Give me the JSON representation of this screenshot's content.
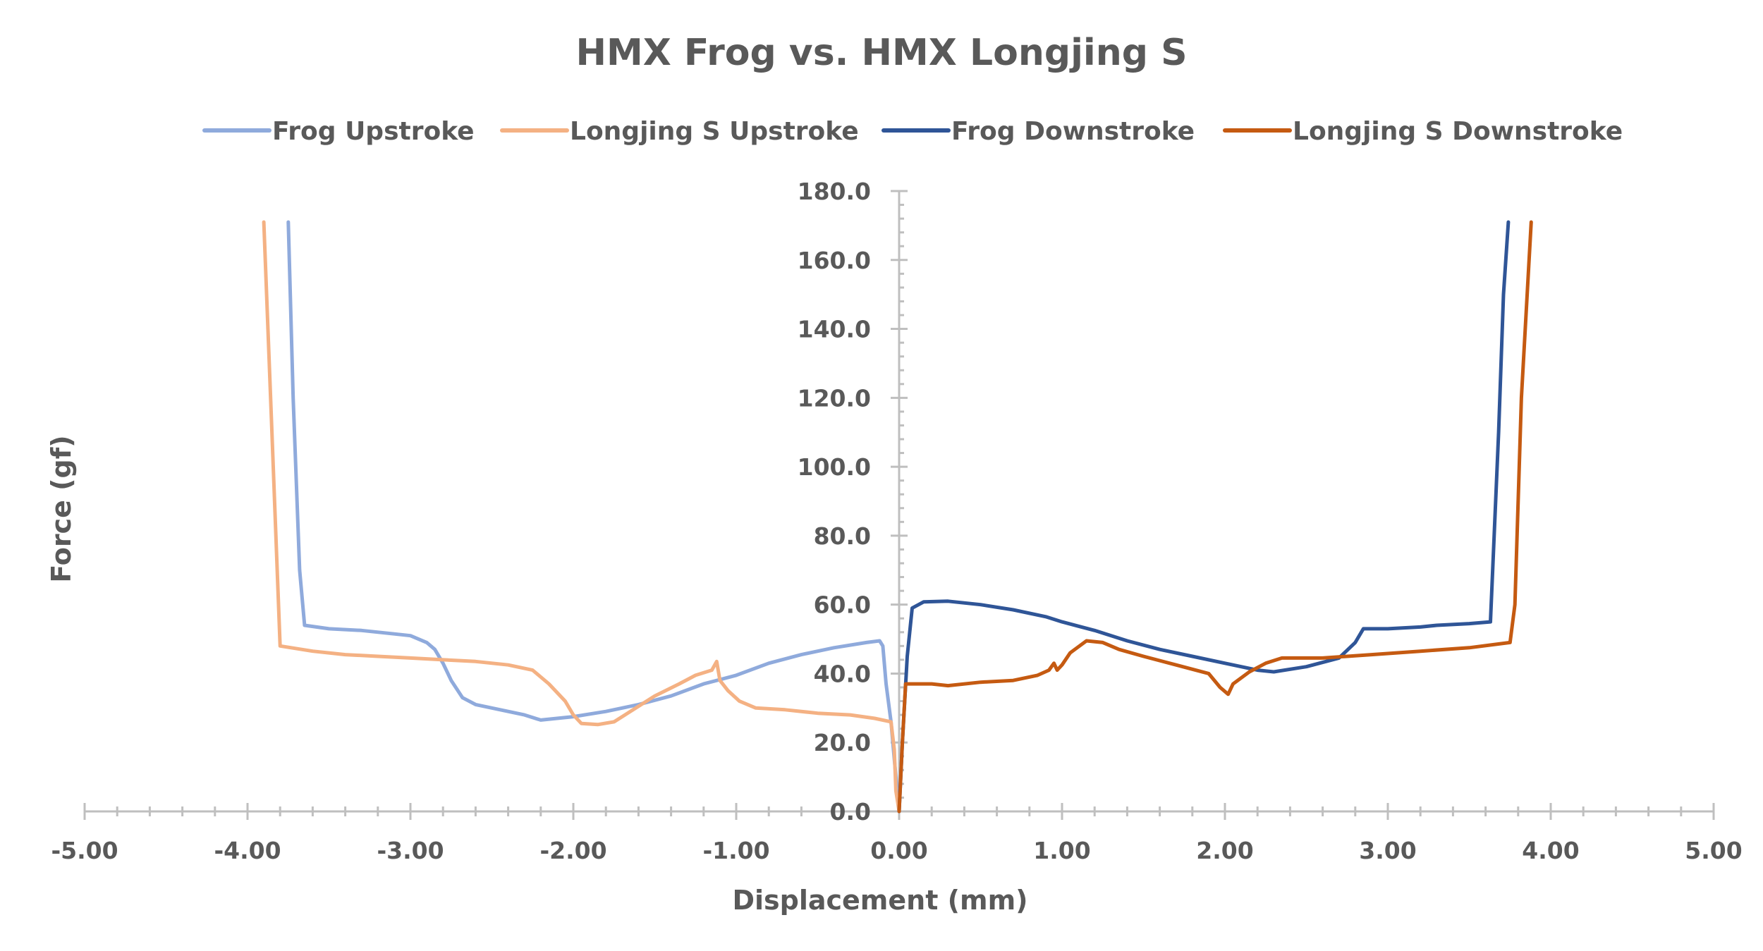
{
  "chart_data": {
    "type": "line",
    "title": "HMX Frog vs. HMX Longjing S",
    "xlabel": "Displacement (mm)",
    "ylabel": "Force (gf)",
    "xlim": [
      -5,
      5
    ],
    "ylim": [
      0,
      180
    ],
    "x_ticks": [
      "-5.00",
      "-4.00",
      "-3.00",
      "-2.00",
      "-1.00",
      "0.00",
      "1.00",
      "2.00",
      "3.00",
      "4.00",
      "5.00"
    ],
    "y_ticks": [
      "0.0",
      "20.0",
      "40.0",
      "60.0",
      "80.0",
      "100.0",
      "120.0",
      "140.0",
      "160.0",
      "180.0"
    ],
    "legend_position": "top",
    "grid": false,
    "series": [
      {
        "name": "Frog Upstroke",
        "color": "#8faadc",
        "points": [
          [
            -3.75,
            171
          ],
          [
            -3.72,
            120
          ],
          [
            -3.68,
            70
          ],
          [
            -3.65,
            54
          ],
          [
            -3.5,
            53
          ],
          [
            -3.3,
            52.5
          ],
          [
            -3.1,
            51.5
          ],
          [
            -3.0,
            51
          ],
          [
            -2.9,
            49
          ],
          [
            -2.85,
            47
          ],
          [
            -2.8,
            43
          ],
          [
            -2.75,
            38
          ],
          [
            -2.68,
            33
          ],
          [
            -2.6,
            31
          ],
          [
            -2.4,
            29
          ],
          [
            -2.3,
            28
          ],
          [
            -2.2,
            26.5
          ],
          [
            -2.1,
            27
          ],
          [
            -2.0,
            27.5
          ],
          [
            -1.8,
            29
          ],
          [
            -1.6,
            31
          ],
          [
            -1.4,
            33.5
          ],
          [
            -1.2,
            37
          ],
          [
            -1.0,
            39.5
          ],
          [
            -0.8,
            43
          ],
          [
            -0.6,
            45.5
          ],
          [
            -0.4,
            47.5
          ],
          [
            -0.2,
            49
          ],
          [
            -0.12,
            49.5
          ],
          [
            -0.1,
            48
          ],
          [
            -0.08,
            37
          ],
          [
            -0.05,
            26
          ],
          [
            -0.02,
            10
          ],
          [
            0.0,
            0
          ]
        ]
      },
      {
        "name": "Longjing S Upstroke",
        "color": "#f4b183",
        "points": [
          [
            -3.9,
            171
          ],
          [
            -3.85,
            110
          ],
          [
            -3.8,
            48
          ],
          [
            -3.6,
            46.5
          ],
          [
            -3.4,
            45.5
          ],
          [
            -3.2,
            45
          ],
          [
            -3.0,
            44.5
          ],
          [
            -2.8,
            44
          ],
          [
            -2.6,
            43.5
          ],
          [
            -2.4,
            42.5
          ],
          [
            -2.25,
            41
          ],
          [
            -2.15,
            37
          ],
          [
            -2.05,
            32
          ],
          [
            -2.0,
            28
          ],
          [
            -1.95,
            25.5
          ],
          [
            -1.85,
            25.2
          ],
          [
            -1.75,
            26
          ],
          [
            -1.6,
            30.5
          ],
          [
            -1.5,
            33.5
          ],
          [
            -1.35,
            37
          ],
          [
            -1.25,
            39.5
          ],
          [
            -1.15,
            41
          ],
          [
            -1.12,
            43.5
          ],
          [
            -1.1,
            38
          ],
          [
            -1.05,
            35
          ],
          [
            -0.98,
            32
          ],
          [
            -0.88,
            30
          ],
          [
            -0.7,
            29.5
          ],
          [
            -0.5,
            28.5
          ],
          [
            -0.3,
            28
          ],
          [
            -0.15,
            27
          ],
          [
            -0.05,
            26
          ],
          [
            -0.03,
            18
          ],
          [
            -0.02,
            6
          ],
          [
            0.0,
            0
          ]
        ]
      },
      {
        "name": "Frog Downstroke",
        "color": "#2f5597",
        "points": [
          [
            0.0,
            0
          ],
          [
            0.02,
            20
          ],
          [
            0.05,
            45
          ],
          [
            0.08,
            59
          ],
          [
            0.15,
            60.8
          ],
          [
            0.3,
            61
          ],
          [
            0.5,
            60
          ],
          [
            0.7,
            58.5
          ],
          [
            0.9,
            56.5
          ],
          [
            1.0,
            55
          ],
          [
            1.2,
            52.5
          ],
          [
            1.4,
            49.5
          ],
          [
            1.6,
            47
          ],
          [
            1.8,
            45
          ],
          [
            2.0,
            43
          ],
          [
            2.2,
            41
          ],
          [
            2.3,
            40.5
          ],
          [
            2.5,
            42
          ],
          [
            2.7,
            44.5
          ],
          [
            2.8,
            49
          ],
          [
            2.85,
            53
          ],
          [
            3.0,
            53
          ],
          [
            3.2,
            53.5
          ],
          [
            3.3,
            54
          ],
          [
            3.5,
            54.5
          ],
          [
            3.63,
            55
          ],
          [
            3.68,
            110
          ],
          [
            3.71,
            150
          ],
          [
            3.74,
            171
          ]
        ]
      },
      {
        "name": "Longjing S Downstroke",
        "color": "#c55a11",
        "points": [
          [
            0.0,
            0
          ],
          [
            0.02,
            20
          ],
          [
            0.04,
            37
          ],
          [
            0.2,
            37
          ],
          [
            0.3,
            36.5
          ],
          [
            0.5,
            37.5
          ],
          [
            0.7,
            38
          ],
          [
            0.85,
            39.5
          ],
          [
            0.92,
            41
          ],
          [
            0.95,
            43
          ],
          [
            0.97,
            41
          ],
          [
            1.0,
            42.5
          ],
          [
            1.05,
            46
          ],
          [
            1.15,
            49.5
          ],
          [
            1.25,
            49
          ],
          [
            1.35,
            47
          ],
          [
            1.5,
            45
          ],
          [
            1.7,
            42.5
          ],
          [
            1.9,
            40
          ],
          [
            1.97,
            36
          ],
          [
            2.02,
            34
          ],
          [
            2.05,
            37
          ],
          [
            2.15,
            40.5
          ],
          [
            2.25,
            43
          ],
          [
            2.35,
            44.5
          ],
          [
            2.6,
            44.5
          ],
          [
            2.9,
            45.5
          ],
          [
            3.2,
            46.5
          ],
          [
            3.5,
            47.5
          ],
          [
            3.75,
            49
          ],
          [
            3.78,
            60
          ],
          [
            3.82,
            120
          ],
          [
            3.88,
            171
          ]
        ]
      }
    ]
  }
}
